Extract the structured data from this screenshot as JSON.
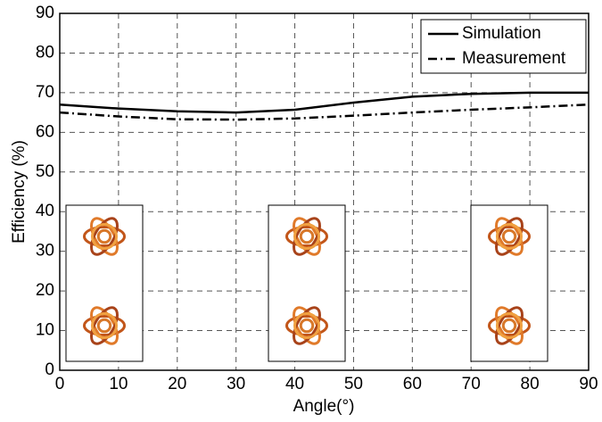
{
  "chart_data": {
    "type": "line",
    "xlabel": "Angle(°)",
    "ylabel": "Efficiency (%)",
    "x": [
      0,
      10,
      20,
      30,
      40,
      50,
      60,
      70,
      80,
      90
    ],
    "series": [
      {
        "name": "Simulation",
        "color": "#000000",
        "dash": "solid",
        "values": [
          67,
          66,
          65.3,
          65,
          65.7,
          67.5,
          69,
          69.7,
          70,
          70
        ]
      },
      {
        "name": "Measurement",
        "color": "#000000",
        "dash": "dashdot",
        "values": [
          65,
          64,
          63.3,
          63.2,
          63.5,
          64.2,
          65,
          65.7,
          66.3,
          67
        ]
      }
    ],
    "xlim": [
      0,
      90
    ],
    "ylim": [
      0,
      90
    ],
    "xticks": [
      0,
      10,
      20,
      30,
      40,
      50,
      60,
      70,
      80,
      90
    ],
    "yticks": [
      0,
      10,
      20,
      30,
      40,
      50,
      60,
      70,
      80,
      90
    ],
    "grid": true,
    "legend": "upper right"
  }
}
